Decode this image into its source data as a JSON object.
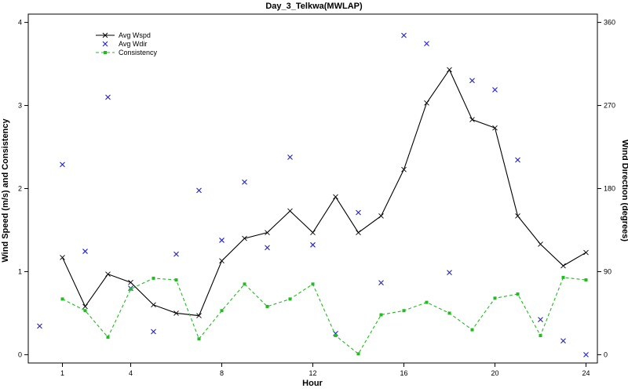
{
  "chart_data": {
    "type": "line",
    "title": "Day_3_Telkwa(MWLAP)",
    "xlabel": "Hour",
    "ylabel_left": "Wind Speed (m/s) and Consistency",
    "ylabel_right": "Wind Direction (degrees)",
    "xlim": [
      -0.5,
      24.5
    ],
    "ylim_left": [
      -0.1,
      4.1
    ],
    "ylim_right": [
      -9,
      369
    ],
    "x_ticks": [
      1,
      4,
      8,
      12,
      16,
      20,
      24
    ],
    "y_ticks_left": [
      0,
      1,
      2,
      3,
      4
    ],
    "y_ticks_right": [
      0,
      90,
      180,
      270,
      360
    ],
    "grid": false,
    "legend_position": "top-left",
    "series": [
      {
        "name": "Avg Wspd",
        "axis": "left",
        "style": "line-x",
        "color": "#000000",
        "x": [
          1,
          2,
          3,
          4,
          5,
          6,
          7,
          8,
          9,
          10,
          11,
          12,
          13,
          14,
          15,
          16,
          17,
          18,
          19,
          20,
          21,
          22,
          23,
          24
        ],
        "values": [
          1.17,
          0.58,
          0.97,
          0.87,
          0.6,
          0.5,
          0.47,
          1.13,
          1.4,
          1.47,
          1.73,
          1.47,
          1.9,
          1.47,
          1.67,
          2.23,
          3.03,
          3.43,
          2.83,
          2.73,
          1.67,
          1.33,
          1.07,
          1.23
        ]
      },
      {
        "name": "Avg Wdir",
        "axis": "right",
        "style": "points-x",
        "color": "#1f1fcf",
        "x": [
          0,
          1,
          2,
          3,
          4,
          5,
          6,
          7,
          8,
          9,
          10,
          11,
          12,
          13,
          14,
          15,
          16,
          17,
          18,
          19,
          20,
          21,
          22,
          23,
          24
        ],
        "values": [
          31,
          206,
          112,
          279,
          72,
          25,
          109,
          178,
          124,
          187,
          116,
          214,
          119,
          23,
          154,
          78,
          346,
          337,
          89,
          297,
          287,
          211,
          38,
          15,
          0
        ]
      },
      {
        "name": "Consistency",
        "axis": "left",
        "style": "dashed-square",
        "color": "#22bb22",
        "x": [
          1,
          2,
          3,
          4,
          5,
          6,
          7,
          8,
          9,
          10,
          11,
          12,
          13,
          14,
          15,
          16,
          17,
          18,
          19,
          20,
          21,
          22,
          23,
          24
        ],
        "values": [
          0.67,
          0.53,
          0.21,
          0.79,
          0.92,
          0.9,
          0.19,
          0.53,
          0.85,
          0.58,
          0.67,
          0.85,
          0.23,
          0.01,
          0.48,
          0.53,
          0.63,
          0.5,
          0.3,
          0.68,
          0.73,
          0.23,
          0.93,
          0.9
        ]
      }
    ]
  }
}
